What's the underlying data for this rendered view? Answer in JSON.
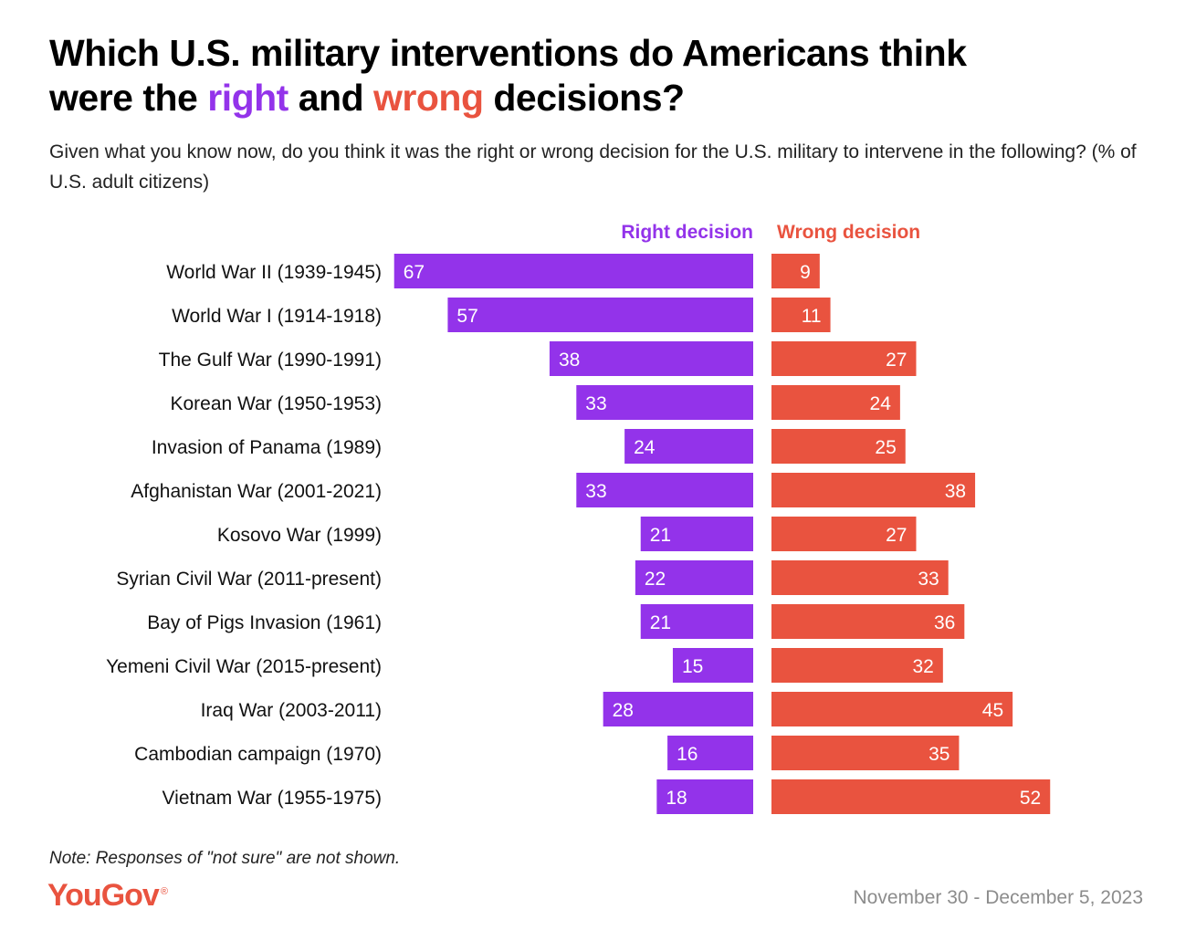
{
  "title": {
    "line1": "Which U.S. military interventions do Americans think",
    "line2_prefix": "were the ",
    "right_word": "right",
    "middle": " and ",
    "wrong_word": "wrong",
    "line2_suffix": " decisions?"
  },
  "subtitle": "Given what you know now, do you think it was the right or wrong decision for the U.S. military to intervene in the following? (% of U.S. adult citizens)",
  "note": "Note: Responses of \"not sure\" are not shown.",
  "logo": {
    "text": "YouGov",
    "reg": "®"
  },
  "date": "November 30 - December 5, 2023",
  "colors": {
    "right": "#9333ea",
    "wrong": "#e9533f",
    "bar_label": "#ffffff",
    "category_label": "#111111"
  },
  "chart_data": {
    "type": "bar",
    "orientation": "horizontal-diverging",
    "unit": "%",
    "categories": [
      "World War II (1939-1945)",
      "World War I (1914-1918)",
      "The Gulf War (1990-1991)",
      "Korean War (1950-1953)",
      "Invasion of Panama (1989)",
      "Afghanistan War (2001-2021)",
      "Kosovo War (1999)",
      "Syrian Civil War (2011-present)",
      "Bay of Pigs Invasion (1961)",
      "Yemeni Civil War (2015-present)",
      "Iraq War (2003-2011)",
      "Cambodian campaign (1970)",
      "Vietnam War (1955-1975)"
    ],
    "series": [
      {
        "name": "Right decision",
        "values": [
          67,
          57,
          38,
          33,
          24,
          33,
          21,
          22,
          21,
          15,
          28,
          16,
          18
        ]
      },
      {
        "name": "Wrong decision",
        "values": [
          9,
          11,
          27,
          24,
          25,
          38,
          27,
          33,
          36,
          32,
          45,
          35,
          52
        ]
      }
    ],
    "axis_range": [
      0,
      100
    ]
  }
}
